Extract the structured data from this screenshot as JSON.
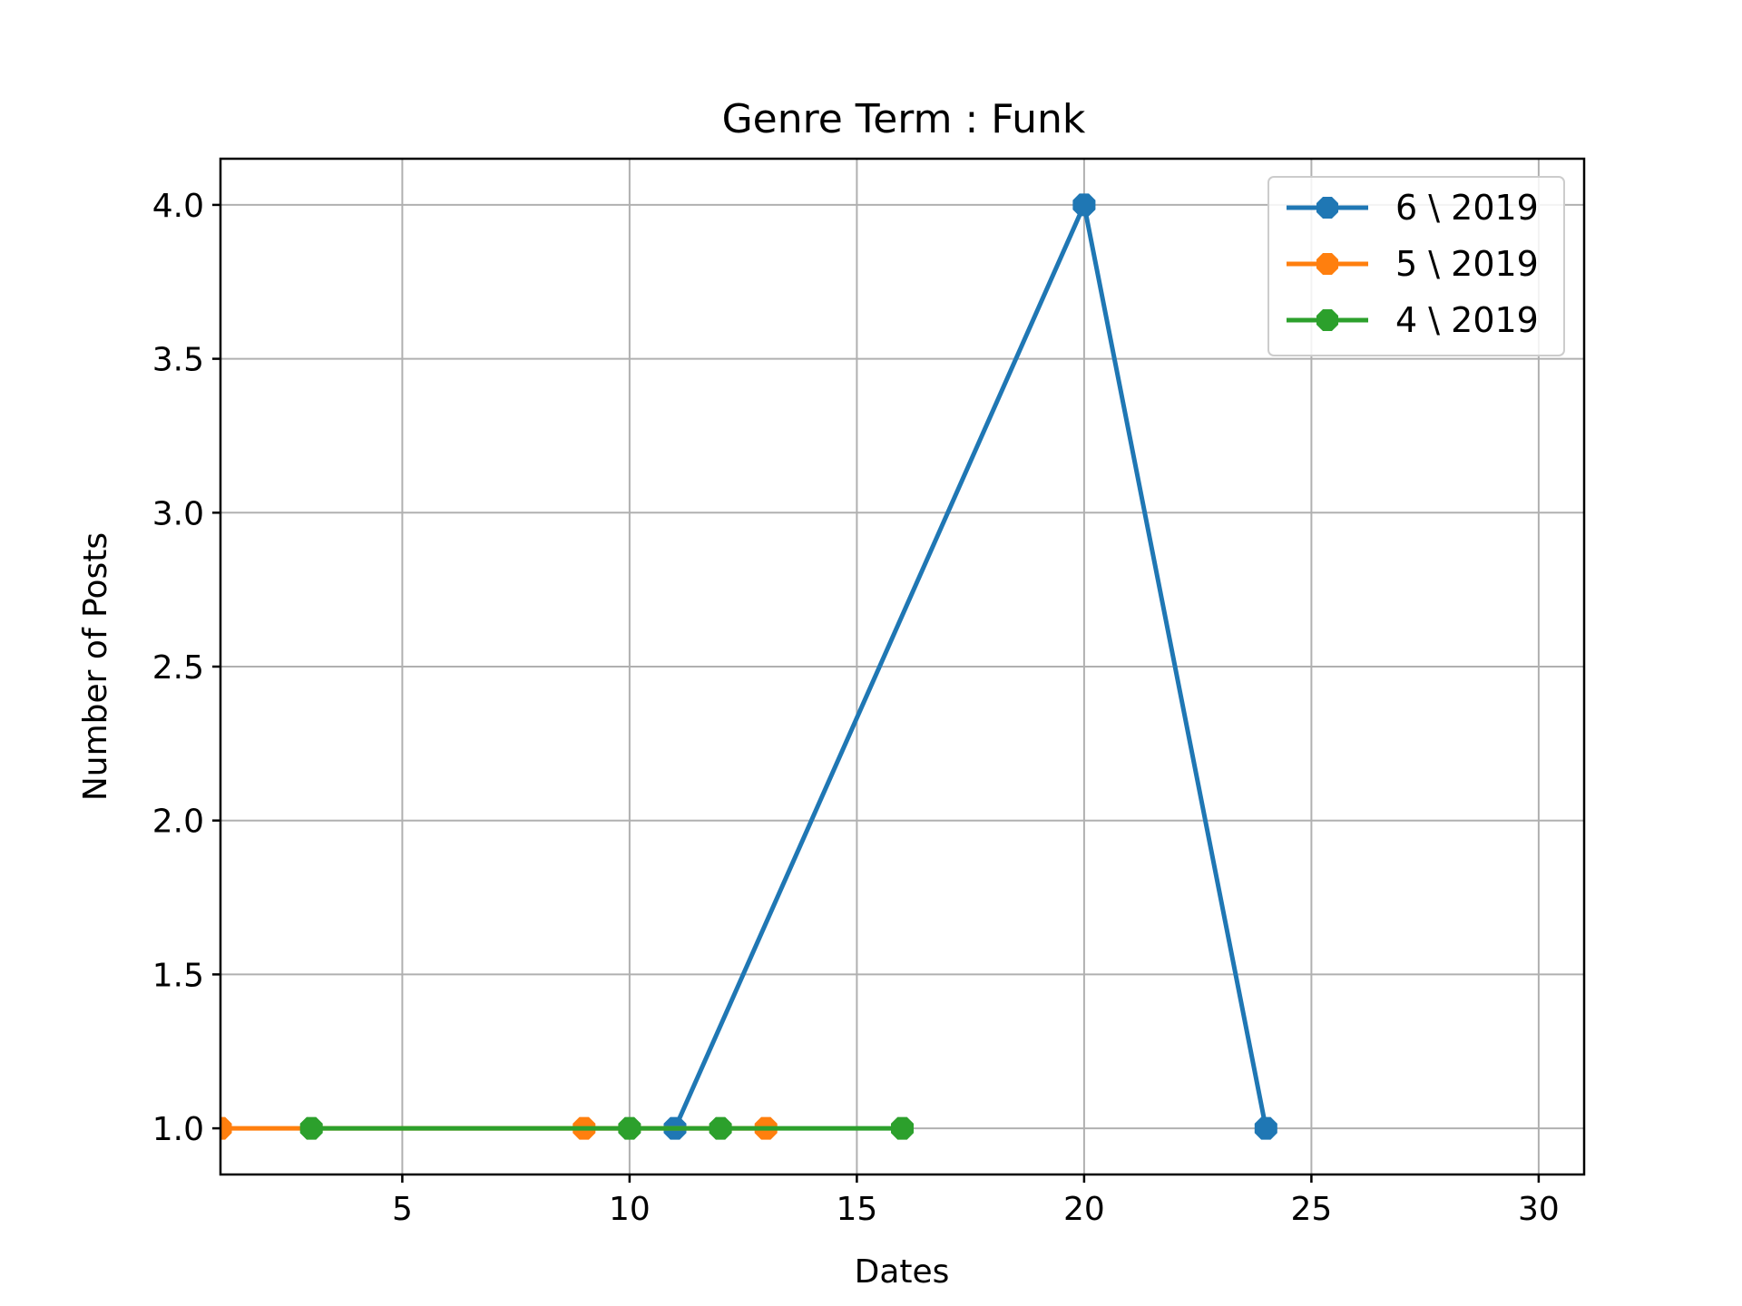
{
  "chart_data": {
    "type": "line",
    "title": "Genre Term : Funk",
    "xlabel": "Dates",
    "ylabel": "Number of Posts",
    "xlim": [
      1,
      31
    ],
    "ylim": [
      0.85,
      4.15
    ],
    "xticks": [
      5,
      10,
      15,
      20,
      25,
      30
    ],
    "yticks": [
      1.0,
      1.5,
      2.0,
      2.5,
      3.0,
      3.5,
      4.0
    ],
    "xtick_labels": [
      "5",
      "10",
      "15",
      "20",
      "25",
      "30"
    ],
    "ytick_labels": [
      "1.0",
      "1.5",
      "2.0",
      "2.5",
      "3.0",
      "3.5",
      "4.0"
    ],
    "grid": true,
    "legend_position": "top-right",
    "series": [
      {
        "name": "6 \\ 2019",
        "color": "#1f77b4",
        "x": [
          11,
          20,
          24
        ],
        "y": [
          1,
          4,
          1
        ]
      },
      {
        "name": "5 \\ 2019",
        "color": "#ff7f0e",
        "x": [
          1,
          9,
          13
        ],
        "y": [
          1,
          1,
          1
        ]
      },
      {
        "name": "4 \\ 2019",
        "color": "#2ca02c",
        "x": [
          3,
          10,
          12,
          16
        ],
        "y": [
          1,
          1,
          1,
          1
        ]
      }
    ]
  }
}
